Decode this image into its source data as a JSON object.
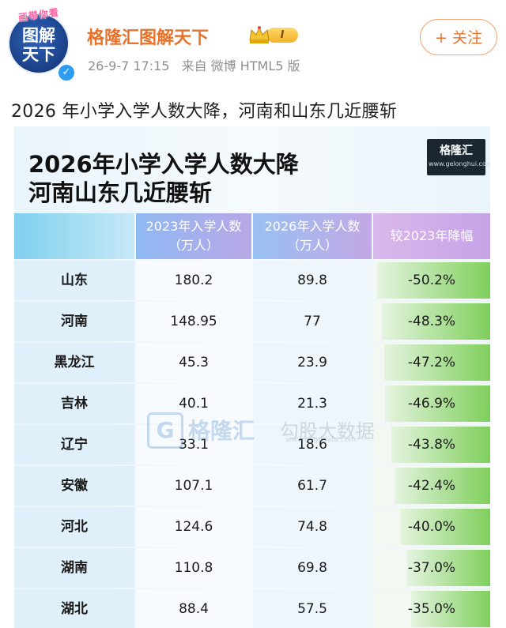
{
  "header": {
    "avatar_ring_text": "画带你看",
    "avatar_line1": "图解",
    "avatar_line2": "天下",
    "user_name": "格隆汇图解天下",
    "level": "I",
    "timestamp": "26-9-7 17:15",
    "source": "来自 微博 HTML5 版",
    "follow_label": "+ 关注"
  },
  "post": {
    "text": "2026 年小学入学人数大降，河南和山东几近腰斩"
  },
  "card": {
    "title_line1": "2026年小学入学人数大降",
    "title_line2": "河南山东几近腰斩",
    "logo_text": "格隆汇",
    "logo_url": "www.gelonghui.com",
    "watermark_brand": "格隆汇",
    "watermark_partner": "勾股大数据",
    "watermark_url": "www.gogudata.com"
  },
  "table": {
    "headers": [
      "",
      "2023年入学人数\n（万人）",
      "2026年入学人数\n（万人）",
      "较2023年降幅"
    ],
    "rows": [
      {
        "province": "山东",
        "y2023": "180.2",
        "y2026": "89.8",
        "change": "-50.2%",
        "frac": 0.502
      },
      {
        "province": "河南",
        "y2023": "148.95",
        "y2026": "77",
        "change": "-48.3%",
        "frac": 0.483
      },
      {
        "province": "黑龙江",
        "y2023": "45.3",
        "y2026": "23.9",
        "change": "-47.2%",
        "frac": 0.472
      },
      {
        "province": "吉林",
        "y2023": "40.1",
        "y2026": "21.3",
        "change": "-46.9%",
        "frac": 0.469
      },
      {
        "province": "辽宁",
        "y2023": "33.1",
        "y2026": "18.6",
        "change": "-43.8%",
        "frac": 0.438
      },
      {
        "province": "安徽",
        "y2023": "107.1",
        "y2026": "61.7",
        "change": "-42.4%",
        "frac": 0.424
      },
      {
        "province": "河北",
        "y2023": "124.6",
        "y2026": "74.8",
        "change": "-40.0%",
        "frac": 0.4
      },
      {
        "province": "湖南",
        "y2023": "110.8",
        "y2026": "69.8",
        "change": "-37.0%",
        "frac": 0.37
      },
      {
        "province": "湖北",
        "y2023": "88.4",
        "y2026": "57.5",
        "change": "-35.0%",
        "frac": 0.35
      }
    ]
  },
  "colors": {
    "accent": "#e8722a",
    "bar_green": "#7fcf5c"
  }
}
